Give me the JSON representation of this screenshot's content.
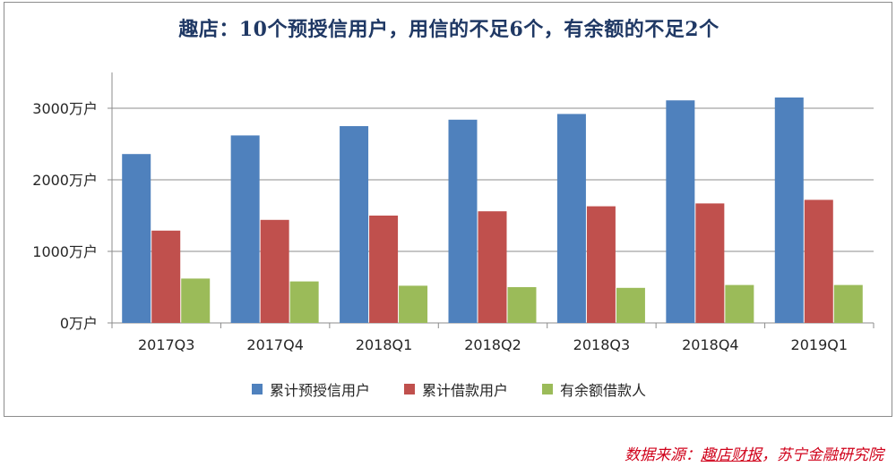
{
  "chart_data": {
    "type": "bar",
    "title": "趣店：10个预授信用户，用信的不足6个，有余额的不足2个",
    "categories": [
      "2017Q3",
      "2017Q4",
      "2018Q1",
      "2018Q2",
      "2018Q3",
      "2018Q4",
      "2019Q1"
    ],
    "series": [
      {
        "name": "累计预授信用户",
        "color": "#4f81bd",
        "values": [
          2360,
          2620,
          2750,
          2840,
          2920,
          3110,
          3150
        ]
      },
      {
        "name": "累计借款用户",
        "color": "#c0504d",
        "values": [
          1290,
          1440,
          1500,
          1560,
          1630,
          1670,
          1720
        ]
      },
      {
        "name": "有余额借款人",
        "color": "#9bbb59",
        "values": [
          620,
          580,
          520,
          500,
          490,
          530,
          530
        ]
      }
    ],
    "yticks": [
      0,
      1000,
      2000,
      3000
    ],
    "ytick_labels": [
      "0万户",
      "1000万户",
      "2000万户",
      "3000万户"
    ],
    "ylim": [
      0,
      3000
    ],
    "grid": true,
    "legend_position": "bottom"
  },
  "source": {
    "prefix": "数据来源：",
    "link": "趣店财报",
    "suffix": "，苏宁金融研究院"
  }
}
